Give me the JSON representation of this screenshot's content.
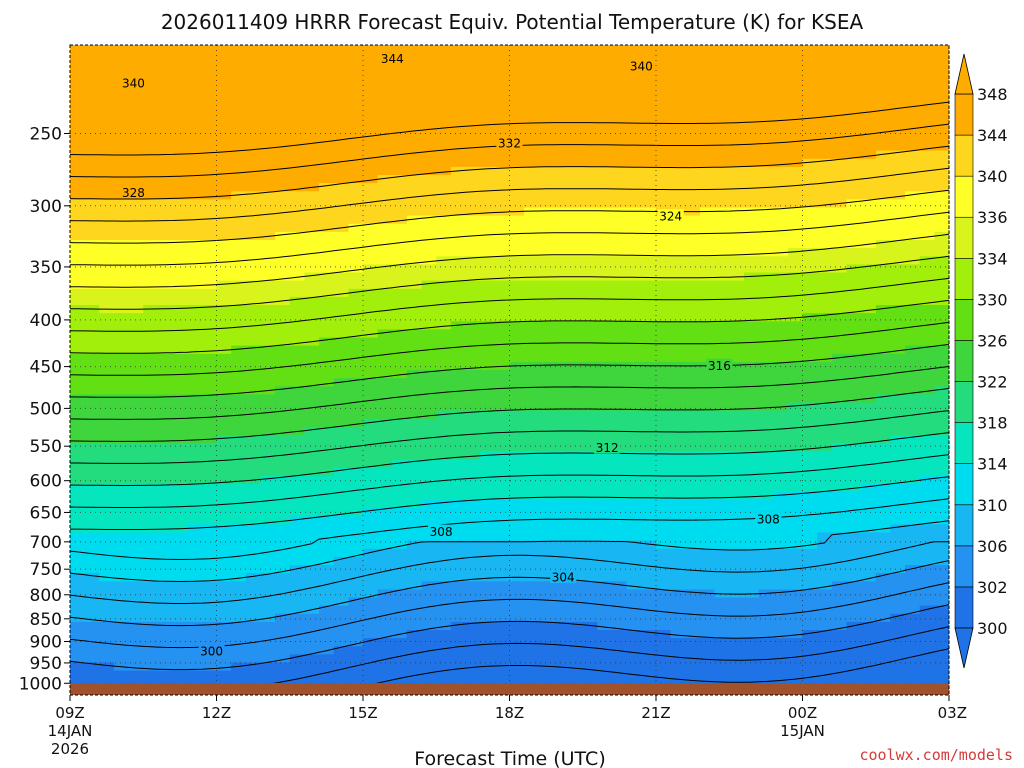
{
  "chart_data": {
    "type": "heatmap",
    "title": "2026011409 HRRR Forecast Equiv. Potential Temperature (K) for KSEA",
    "xlabel": "Forecast Time (UTC)",
    "ylabel": "",
    "x_ticks": [
      "09Z",
      "12Z",
      "15Z",
      "18Z",
      "21Z",
      "00Z",
      "03Z"
    ],
    "x_tick_dates": [
      {
        "tick": "09Z",
        "date": "14JAN",
        "year": "2026"
      },
      {
        "tick": "00Z",
        "date": "15JAN",
        "year": ""
      }
    ],
    "x_hours": [
      0,
      3,
      6,
      9,
      12,
      15,
      18
    ],
    "y_ticks": [
      250,
      300,
      350,
      400,
      450,
      500,
      550,
      600,
      650,
      700,
      750,
      800,
      850,
      900,
      950,
      1000
    ],
    "y_range_hpa": [
      200,
      1030
    ],
    "y_scale": "log",
    "grid": "dotted",
    "colorbar": {
      "levels": [
        300,
        302,
        306,
        310,
        314,
        318,
        322,
        326,
        330,
        334,
        336,
        340,
        344,
        348
      ],
      "colors": [
        "#1f73e6",
        "#2592f2",
        "#18b6f2",
        "#00dcef",
        "#06e6be",
        "#22dc7e",
        "#3fd53c",
        "#63e014",
        "#a2ef0c",
        "#d9f41c",
        "#ffff28",
        "#ffd61e",
        "#ffac00"
      ]
    },
    "contour_labels": [
      {
        "value": "344",
        "hour": 6.6,
        "p": 207
      },
      {
        "value": "340",
        "hour": 1.3,
        "p": 220
      },
      {
        "value": "340",
        "hour": 11.7,
        "p": 211
      },
      {
        "value": "332",
        "hour": 9.0,
        "p": 256
      },
      {
        "value": "328",
        "hour": 1.3,
        "p": 290
      },
      {
        "value": "324",
        "hour": 12.3,
        "p": 308
      },
      {
        "value": "316",
        "hour": 13.3,
        "p": 449
      },
      {
        "value": "312",
        "hour": 11.0,
        "p": 552
      },
      {
        "value": "308",
        "hour": 7.6,
        "p": 682
      },
      {
        "value": "308",
        "hour": 14.3,
        "p": 661
      },
      {
        "value": "304",
        "hour": 10.1,
        "p": 765
      },
      {
        "value": "300",
        "hour": 2.9,
        "p": 922
      }
    ],
    "surface": "terrain",
    "credit": "coolwx.com/models"
  }
}
